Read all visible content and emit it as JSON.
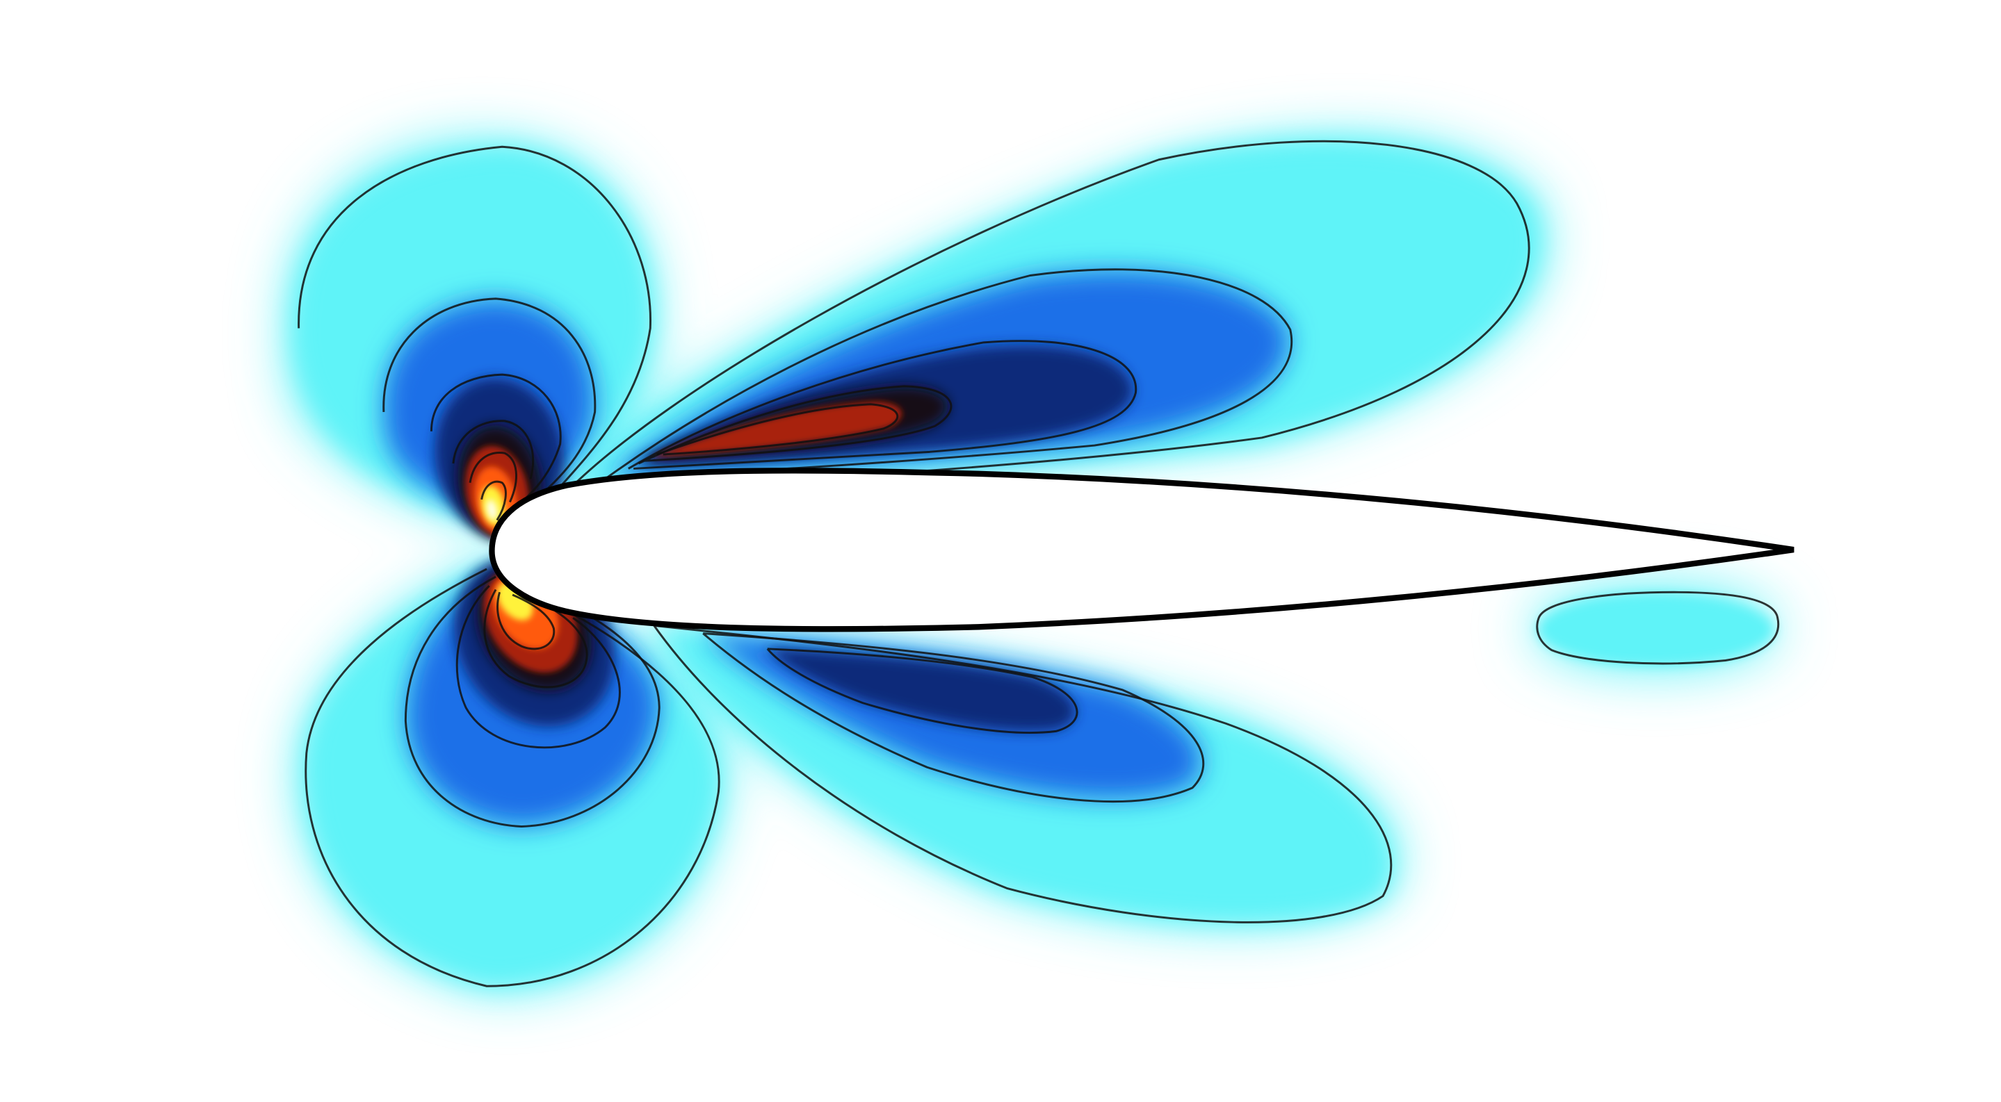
{
  "figure": {
    "description_tags": [
      "contour-field",
      "airfoil"
    ],
    "colormap": {
      "background": "#ffffff",
      "light": "#5ff3f8",
      "mid": "#1a6fe8",
      "deep": "#0b2a7a",
      "dark": "#140a14",
      "hot": "#a8220c",
      "warm": "#ff5a0a",
      "peak": "#fff23a",
      "core": "#ffffe6"
    },
    "contour_line_color": "#111111",
    "airfoil_outline_color": "#000000"
  }
}
